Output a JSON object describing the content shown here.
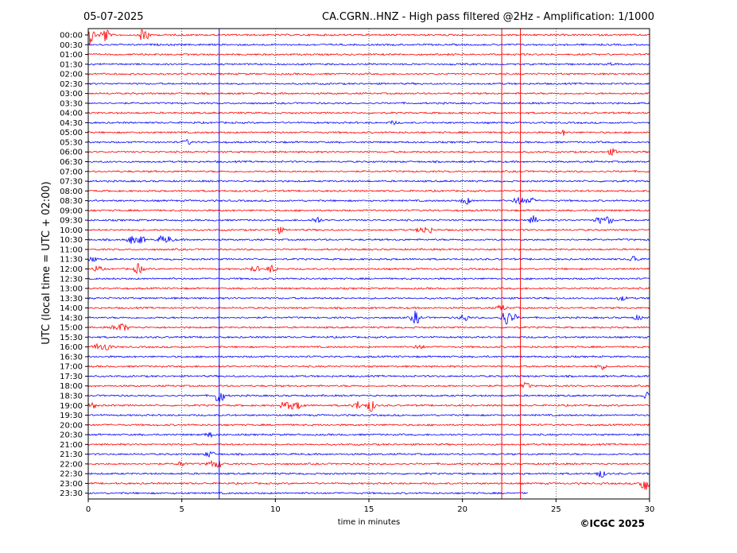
{
  "chart_data": {
    "type": "line",
    "title_left": "05-07-2025",
    "title_right": "CA.CGRN..HNZ - High pass filtered @2Hz - Amplification: 1/1000",
    "xlabel": "time in minutes",
    "ylabel": "UTC (local time = UTC + 02:00)",
    "xlim": [
      0,
      30
    ],
    "x_ticks": [
      "0",
      "5",
      "10",
      "15",
      "20",
      "25",
      "30"
    ],
    "x_tick_values": [
      0,
      5,
      10,
      15,
      20,
      25,
      30
    ],
    "y_ticks": [
      "00:00",
      "00:30",
      "01:00",
      "01:30",
      "02:00",
      "02:30",
      "03:00",
      "03:30",
      "04:00",
      "04:30",
      "05:00",
      "05:30",
      "06:00",
      "06:30",
      "07:00",
      "07:30",
      "08:00",
      "08:30",
      "09:00",
      "09:30",
      "10:00",
      "10:30",
      "11:00",
      "11:30",
      "12:00",
      "12:30",
      "13:00",
      "13:30",
      "14:00",
      "14:30",
      "15:00",
      "15:30",
      "16:00",
      "16:30",
      "17:00",
      "17:30",
      "18:00",
      "18:30",
      "19:00",
      "19:30",
      "20:00",
      "20:30",
      "21:00",
      "21:30",
      "22:00",
      "22:30",
      "23:00",
      "23:30"
    ],
    "trace_colors": [
      "#ff0000",
      "#0000ff"
    ],
    "grid": "vertical dotted at 5-minute ticks",
    "trace_end_last_row_minutes": 23.5,
    "vertical_markers": [
      {
        "x": 7.0,
        "color": "#0000ff"
      },
      {
        "x": 22.1,
        "color": "#ff0000"
      },
      {
        "x": 23.1,
        "color": "#ff0000"
      }
    ],
    "events": [
      {
        "row": 0,
        "x": 0.1,
        "amp": 12
      },
      {
        "row": 0,
        "x": 0.9,
        "amp": 10
      },
      {
        "row": 0,
        "x": 3.0,
        "amp": 14
      },
      {
        "row": 3,
        "x": 28.0,
        "amp": 2
      },
      {
        "row": 9,
        "x": 16.3,
        "amp": 2
      },
      {
        "row": 10,
        "x": 25.4,
        "amp": 3
      },
      {
        "row": 11,
        "x": 5.3,
        "amp": 3
      },
      {
        "row": 12,
        "x": 28.0,
        "amp": 4
      },
      {
        "row": 17,
        "x": 20.2,
        "amp": 5
      },
      {
        "row": 17,
        "x": 23.0,
        "amp": 7
      },
      {
        "row": 17,
        "x": 23.6,
        "amp": 5
      },
      {
        "row": 19,
        "x": 12.2,
        "amp": 5
      },
      {
        "row": 19,
        "x": 23.8,
        "amp": 5
      },
      {
        "row": 19,
        "x": 27.3,
        "amp": 4
      },
      {
        "row": 19,
        "x": 27.8,
        "amp": 5
      },
      {
        "row": 20,
        "x": 10.2,
        "amp": 4
      },
      {
        "row": 20,
        "x": 17.8,
        "amp": 4
      },
      {
        "row": 20,
        "x": 18.2,
        "amp": 4
      },
      {
        "row": 21,
        "x": 2.3,
        "amp": 5
      },
      {
        "row": 21,
        "x": 2.8,
        "amp": 5
      },
      {
        "row": 21,
        "x": 3.9,
        "amp": 4
      },
      {
        "row": 21,
        "x": 4.3,
        "amp": 4
      },
      {
        "row": 23,
        "x": 0.2,
        "amp": 3
      },
      {
        "row": 23,
        "x": 29.2,
        "amp": 5
      },
      {
        "row": 24,
        "x": 0.5,
        "amp": 4
      },
      {
        "row": 24,
        "x": 2.7,
        "amp": 7
      },
      {
        "row": 24,
        "x": 8.9,
        "amp": 4
      },
      {
        "row": 24,
        "x": 9.8,
        "amp": 5
      },
      {
        "row": 27,
        "x": 28.5,
        "amp": 3
      },
      {
        "row": 28,
        "x": 22.1,
        "amp": 4
      },
      {
        "row": 29,
        "x": 17.5,
        "amp": 9
      },
      {
        "row": 29,
        "x": 20.1,
        "amp": 5
      },
      {
        "row": 29,
        "x": 22.3,
        "amp": 10
      },
      {
        "row": 29,
        "x": 22.7,
        "amp": 5
      },
      {
        "row": 29,
        "x": 29.4,
        "amp": 3
      },
      {
        "row": 30,
        "x": 1.5,
        "amp": 4
      },
      {
        "row": 30,
        "x": 1.9,
        "amp": 5
      },
      {
        "row": 32,
        "x": 0.5,
        "amp": 4
      },
      {
        "row": 32,
        "x": 1.0,
        "amp": 5
      },
      {
        "row": 32,
        "x": 17.7,
        "amp": 3
      },
      {
        "row": 34,
        "x": 27.4,
        "amp": 4
      },
      {
        "row": 36,
        "x": 23.4,
        "amp": 4
      },
      {
        "row": 37,
        "x": 7.0,
        "amp": 12
      },
      {
        "row": 37,
        "x": 29.9,
        "amp": 4
      },
      {
        "row": 38,
        "x": 0.2,
        "amp": 4
      },
      {
        "row": 38,
        "x": 10.5,
        "amp": 5
      },
      {
        "row": 38,
        "x": 10.9,
        "amp": 4
      },
      {
        "row": 38,
        "x": 11.3,
        "amp": 4
      },
      {
        "row": 38,
        "x": 14.4,
        "amp": 5
      },
      {
        "row": 38,
        "x": 15.1,
        "amp": 8
      },
      {
        "row": 41,
        "x": 6.5,
        "amp": 3
      },
      {
        "row": 43,
        "x": 6.5,
        "amp": 4
      },
      {
        "row": 44,
        "x": 5.0,
        "amp": 3
      },
      {
        "row": 44,
        "x": 6.6,
        "amp": 4
      },
      {
        "row": 44,
        "x": 7.0,
        "amp": 4
      },
      {
        "row": 45,
        "x": 27.4,
        "amp": 5
      },
      {
        "row": 46,
        "x": 29.7,
        "amp": 12
      }
    ]
  },
  "copyright": "©ICGC 2025"
}
